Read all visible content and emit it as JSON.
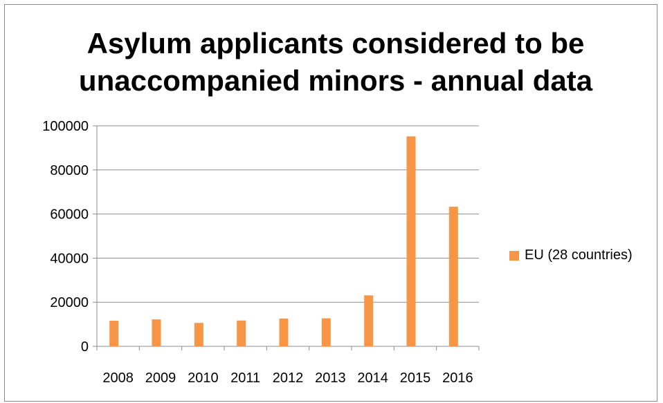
{
  "chart_data": {
    "type": "bar",
    "title": "Asylum applicants considered to be\nunaccompanied minors - annual data",
    "xlabel": "",
    "ylabel": "",
    "categories": [
      "2008",
      "2009",
      "2010",
      "2011",
      "2012",
      "2013",
      "2014",
      "2015",
      "2016"
    ],
    "series": [
      {
        "name": "EU (28 countries)",
        "color": "#F79646",
        "values": [
          11600,
          12200,
          10600,
          11700,
          12600,
          12700,
          23100,
          95200,
          63300
        ]
      }
    ],
    "ylim": [
      0,
      100000
    ],
    "yticks": [
      "0",
      "20000",
      "40000",
      "60000",
      "80000",
      "100000"
    ],
    "grid": "horizontal",
    "legend_position": "right"
  }
}
